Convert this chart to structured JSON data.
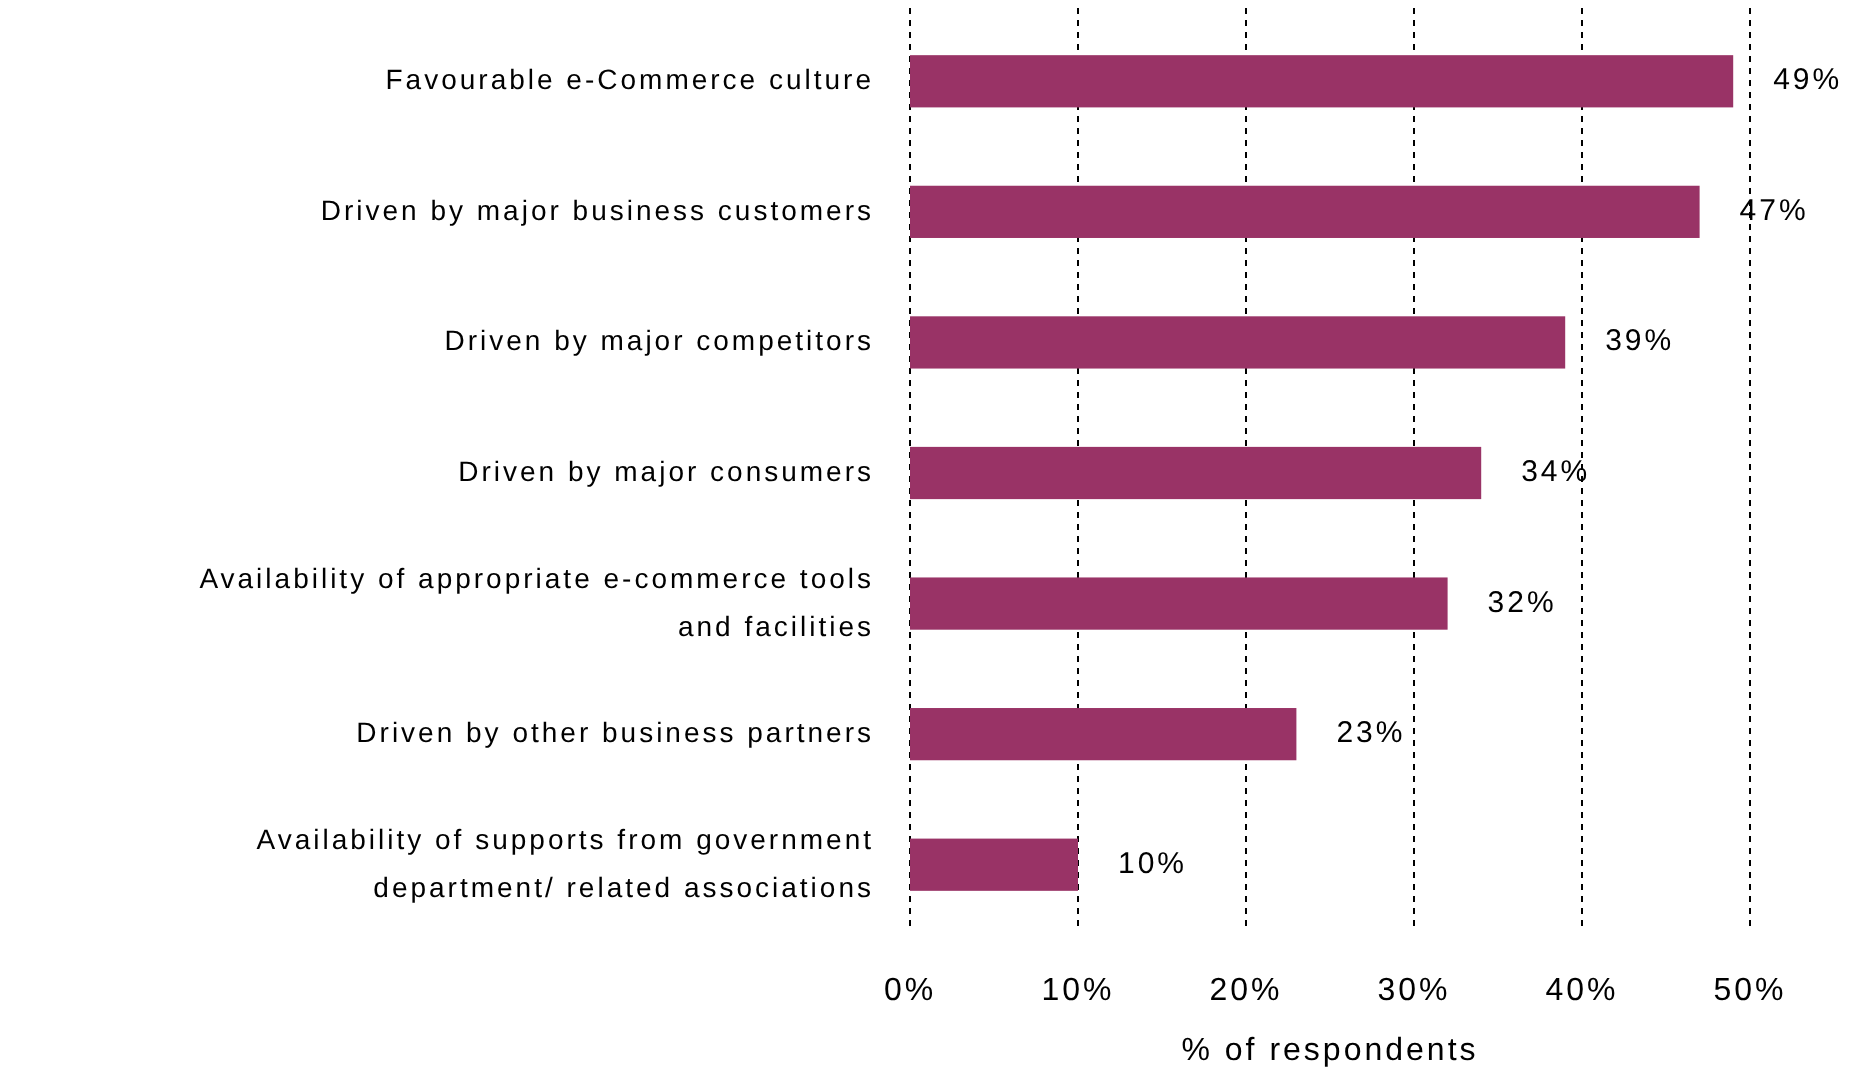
{
  "chart_data": {
    "type": "bar",
    "orientation": "horizontal",
    "xlabel": "% of respondents",
    "categories": [
      "Favourable e-Commerce culture",
      "Driven by major business customers",
      "Driven by major competitors",
      "Driven by major consumers",
      "Availability of appropriate e-commerce tools and facilities",
      "Driven by other business partners",
      "Availability of supports from government department/ related associations"
    ],
    "values": [
      49,
      47,
      39,
      34,
      32,
      23,
      10
    ],
    "color": "#993366",
    "xlim": [
      0,
      50
    ],
    "xticks": [
      {
        "value": 0,
        "label": "0%"
      },
      {
        "value": 10,
        "label": "10%"
      },
      {
        "value": 20,
        "label": "20%"
      },
      {
        "value": 30,
        "label": "30%"
      },
      {
        "value": 40,
        "label": "40%"
      },
      {
        "value": 50,
        "label": "50%"
      }
    ],
    "grid": "x",
    "value_labels": [
      "49%",
      "47%",
      "39%",
      "34%",
      "32%",
      "23%",
      "10%"
    ]
  }
}
